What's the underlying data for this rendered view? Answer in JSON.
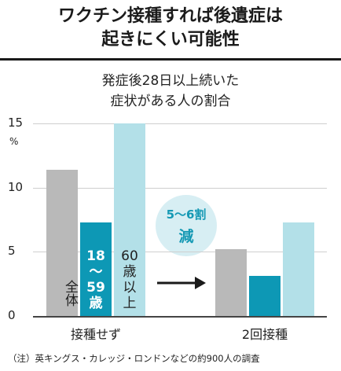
{
  "headline": {
    "line1": "ワクチン接種すれば後遺症は",
    "line2": "起きにくい可能性"
  },
  "chart_data": {
    "type": "bar",
    "title": "発症後28日以上続いた症状がある人の割合",
    "title_lines": [
      "発症後28日以上続いた",
      "症状がある人の割合"
    ],
    "unit": "%",
    "ylim": [
      0,
      15
    ],
    "yticks": [
      0,
      5,
      10,
      15
    ],
    "grid": true,
    "categories": [
      "接種せず",
      "2回接種"
    ],
    "series": [
      {
        "name": "全体",
        "color": "#b9b9b9",
        "values": [
          11.4,
          5.2
        ]
      },
      {
        "name": "18〜59歳",
        "color": "#0d98b5",
        "values": [
          7.3,
          3.1
        ]
      },
      {
        "name": "60歳以上",
        "color": "#b3e0e8",
        "values": [
          15.0,
          7.3
        ]
      }
    ],
    "series_labels": [
      {
        "text": "全体",
        "style": "dark"
      },
      {
        "text": "18〜59歳",
        "style": "teal"
      },
      {
        "text": "60歳以上",
        "style": "dark"
      }
    ],
    "callout": {
      "line1": "5〜6割",
      "line2": "減"
    }
  },
  "note": "（注）英キングス・カレッジ・ロンドンなどの約900人の調査",
  "colors": {
    "bubble": "#d7eef3",
    "accent": "#1599b4",
    "axis": "#444444"
  }
}
